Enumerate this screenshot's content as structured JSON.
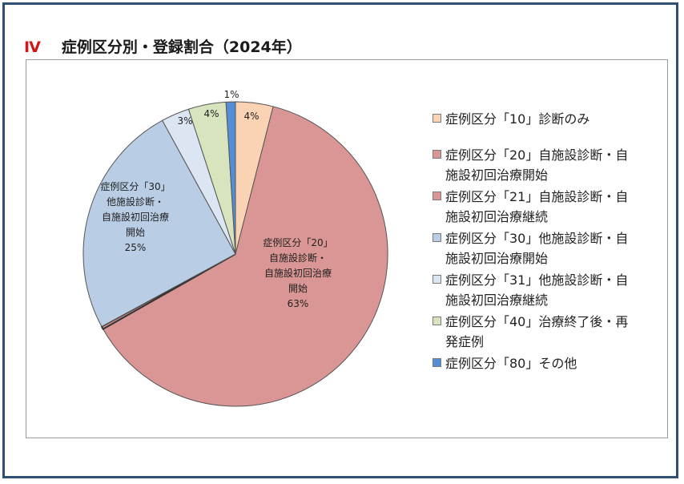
{
  "heading": {
    "number": "Ⅳ",
    "title": "症例区分別・登録割合（2024年）"
  },
  "chart_data": {
    "type": "pie",
    "slices": [
      {
        "name": "症例区分「10」診断のみ",
        "value": 4,
        "color": "#fad2b4",
        "label": "4%"
      },
      {
        "name": "症例区分「20」自施設診断・自施設初回治療開始",
        "value": 63,
        "color": "#d99694",
        "label": "63%",
        "inner_label": "症例区分「20」\n自施設診断・\n自施設初回治療\n開始"
      },
      {
        "name": "症例区分「21」自施設診断・自施設初回治療継続",
        "value": 0.3,
        "color": "#d99694",
        "label": ""
      },
      {
        "name": "症例区分「30」他施設診断・自施設初回治療開始",
        "value": 25,
        "color": "#b9cde5",
        "label": "25%",
        "inner_label": "症例区分「30」\n他施設診断・\n自施設初回治療\n開始"
      },
      {
        "name": "症例区分「31」他施設診断・自施設初回治療継続",
        "value": 3,
        "color": "#dce6f2",
        "label": "3%"
      },
      {
        "name": "症例区分「40」治療終了後・再発症例",
        "value": 4,
        "color": "#d7e4bd",
        "label": "4%"
      },
      {
        "name": "症例区分「80」その他",
        "value": 1,
        "color": "#558ed5",
        "label": "1%"
      }
    ],
    "legend_position": "right",
    "legend": [
      {
        "lines": [
          "症例区分「10」診断のみ"
        ],
        "color": "#fad2b4"
      },
      {
        "lines": [
          "症例区分「20」自施設診断・自",
          "施設初回治療開始"
        ],
        "color": "#d99694"
      },
      {
        "lines": [
          "症例区分「21」自施設診断・自",
          "施設初回治療継続"
        ],
        "color": "#d99694"
      },
      {
        "lines": [
          "症例区分「30」他施設診断・自",
          "施設初回治療開始"
        ],
        "color": "#b9cde5"
      },
      {
        "lines": [
          "症例区分「31」他施設診断・自",
          "施設初回治療継続"
        ],
        "color": "#dce6f2"
      },
      {
        "lines": [
          "症例区分「40」治療終了後・再",
          "発症例"
        ],
        "color": "#d7e4bd"
      },
      {
        "lines": [
          "症例区分「80」その他"
        ],
        "color": "#558ed5"
      }
    ]
  }
}
